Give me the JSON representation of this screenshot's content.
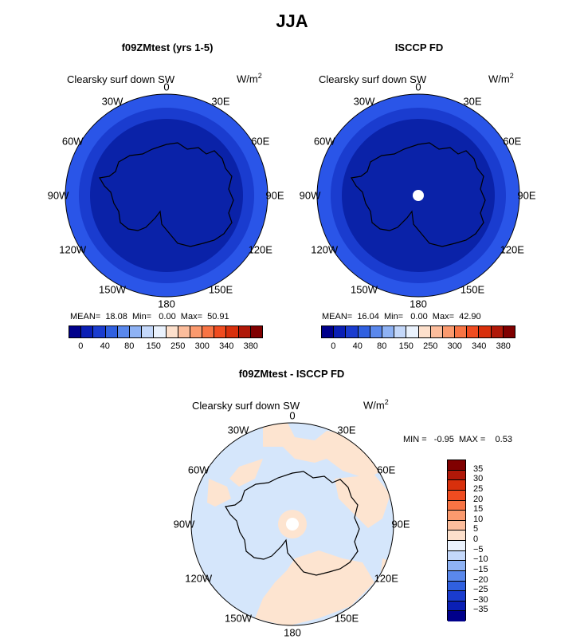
{
  "title": "JJA",
  "panels": [
    {
      "title": "f09ZMtest (yrs 1-5)",
      "field": "Clearsky surf down SW",
      "units": "W/m",
      "units_exp": "2",
      "stats": "MEAN=  18.08  Min=   0.00  Max=  50.91"
    },
    {
      "title": "ISCCP FD",
      "field": "Clearsky surf down SW",
      "units": "W/m",
      "units_exp": "2",
      "stats": "MEAN=  16.04  Min=   0.00  Max=  42.90"
    }
  ],
  "diff": {
    "title": "f09ZMtest - ISCCP FD",
    "field": "Clearsky surf down SW",
    "units": "W/m",
    "units_exp": "2",
    "stats": "MIN =   -0.95  MAX =    0.53"
  },
  "lon_labels": [
    "0",
    "30E",
    "60E",
    "90E",
    "120E",
    "150E",
    "180",
    "150W",
    "120W",
    "90W",
    "60W",
    "30W"
  ],
  "abs_colorbar": {
    "ticks": [
      "0",
      "40",
      "80",
      "150",
      "250",
      "300",
      "340",
      "380"
    ],
    "colors": [
      "#00008b",
      "#0a1fb5",
      "#1a3ccf",
      "#3060e0",
      "#5a88ec",
      "#8eb2f4",
      "#c4d8fa",
      "#eaf2fd",
      "#fde0cc",
      "#fcbd9c",
      "#fb9a6e",
      "#f87444",
      "#f04c20",
      "#d8300c",
      "#b01808",
      "#800000"
    ]
  },
  "diff_colorbar": {
    "ticks": [
      "35",
      "30",
      "25",
      "20",
      "15",
      "10",
      "5",
      "0",
      "−5",
      "−10",
      "−15",
      "−20",
      "−25",
      "−30",
      "−35"
    ],
    "colors": [
      "#800000",
      "#b01808",
      "#d8300c",
      "#f04c20",
      "#f87444",
      "#fb9a6e",
      "#fcbd9c",
      "#fde0cc",
      "#eaf2fd",
      "#c4d8fa",
      "#8eb2f4",
      "#5a88ec",
      "#3060e0",
      "#1a3ccf",
      "#0a1fb5",
      "#00008b"
    ]
  },
  "map_colors": {
    "outer_ring": "#2a55e8",
    "mid_ring": "#1a3ccf",
    "inner": "#0a22a8",
    "pole_hole": "#ffffff",
    "diff_negative": "#d5e6fb",
    "diff_positive": "#fde4d0"
  }
}
